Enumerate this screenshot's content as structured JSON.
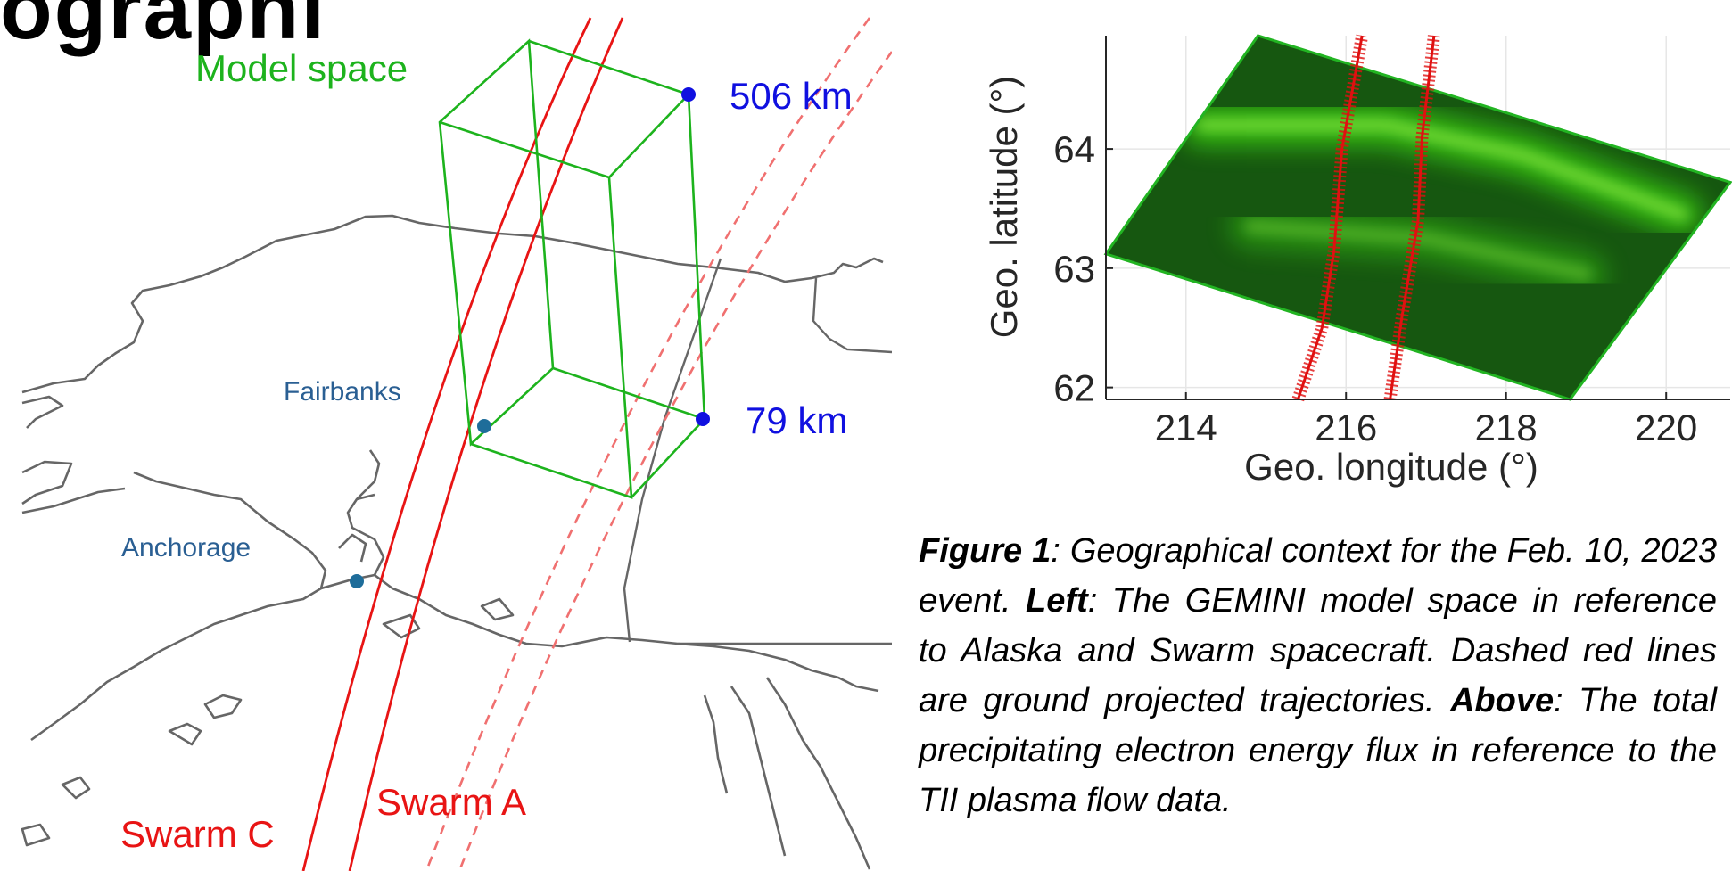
{
  "heading_fragment": "ographi",
  "map": {
    "model_space_label": "Model space",
    "altitude_top_label": "506 km",
    "altitude_bottom_label": "79 km",
    "cities": [
      {
        "name": "Fairbanks"
      },
      {
        "name": "Anchorage"
      }
    ],
    "trajectories": [
      {
        "name": "Swarm A"
      },
      {
        "name": "Swarm C"
      }
    ],
    "colors": {
      "model_space": "#1db31d",
      "altitude_points": "#1010e0",
      "cities": "#2a5f93",
      "trajectories": "#e81414",
      "coastline": "#666666"
    }
  },
  "chart_data": {
    "type": "heatmap",
    "xlabel": "Geo. longitude (°)",
    "ylabel": "Geo. latitude (°)",
    "xlim": [
      213,
      220.8
    ],
    "ylim": [
      61.9,
      64.95
    ],
    "xticks": [
      214,
      216,
      218,
      220
    ],
    "yticks": [
      62,
      63,
      64
    ],
    "grid": true,
    "region_corners": [
      [
        213.0,
        63.12
      ],
      [
        214.9,
        64.95
      ],
      [
        220.8,
        63.72
      ],
      [
        218.8,
        61.9
      ]
    ],
    "bright_arcs": [
      {
        "points": [
          [
            214.2,
            64.2
          ],
          [
            216.5,
            64.2
          ],
          [
            218.2,
            63.95
          ],
          [
            220.2,
            63.45
          ]
        ],
        "intensity": 0.85
      },
      {
        "points": [
          [
            214.8,
            63.35
          ],
          [
            217,
            63.25
          ],
          [
            219,
            62.95
          ]
        ],
        "intensity": 0.5
      }
    ],
    "flow_tracks": [
      {
        "points": [
          [
            215.4,
            61.9
          ],
          [
            215.7,
            62.5
          ],
          [
            215.85,
            63.15
          ],
          [
            215.95,
            64.0
          ],
          [
            216.2,
            64.95
          ]
        ]
      },
      {
        "points": [
          [
            216.55,
            61.9
          ],
          [
            216.7,
            62.6
          ],
          [
            216.9,
            63.4
          ],
          [
            216.95,
            64.1
          ],
          [
            217.1,
            64.95
          ]
        ]
      }
    ],
    "colors": {
      "region_edge": "#22b422",
      "flux": "#4cff12",
      "tracks": "#e01010",
      "grid": "#e6e6e6"
    }
  },
  "caption": {
    "figure_label": "Figure 1",
    "intro": ": Geographical context for the Feb. 10, 2023 event. ",
    "left_label": "Left",
    "left_text": ": The GEMINI model space in reference to Alaska and Swarm spacecraft. Dashed red lines are ground projected trajectories. ",
    "above_label": "Above",
    "above_text": ": The total precipitating electron energy flux in reference to the TII plasma flow data."
  }
}
